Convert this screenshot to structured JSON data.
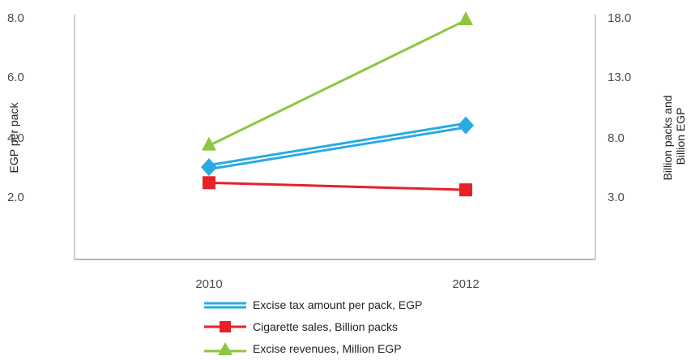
{
  "chart_data": {
    "type": "line",
    "categories": [
      "2010",
      "2012"
    ],
    "ylabel": "EGP per pack",
    "ylabel_right": "Billion packs and Billion EGP",
    "y_ticks": [
      "2.0",
      "4.0",
      "6.0",
      "8.0"
    ],
    "y_right_ticks": [
      "3.0",
      "8.0",
      "13.0",
      "18.0"
    ],
    "ylim": [
      0,
      8
    ],
    "y_right_lim": [
      -2,
      18
    ],
    "series": [
      {
        "name": "Excise tax amount per pack, EGP",
        "axis": "left",
        "values": [
          3.0,
          4.4
        ],
        "color": "#29abe2",
        "marker": "diamond",
        "line": "double"
      },
      {
        "name": "Cigarette sales, Billion packs",
        "axis": "right",
        "values": [
          4.2,
          3.6
        ],
        "color": "#e8202a",
        "marker": "square",
        "line": "single"
      },
      {
        "name": "Excise revenues, Million EGP",
        "axis": "right",
        "values": [
          7.3,
          17.8
        ],
        "color": "#8dc63f",
        "marker": "triangle",
        "line": "single"
      }
    ],
    "legend_position": "bottom",
    "grid": false
  }
}
